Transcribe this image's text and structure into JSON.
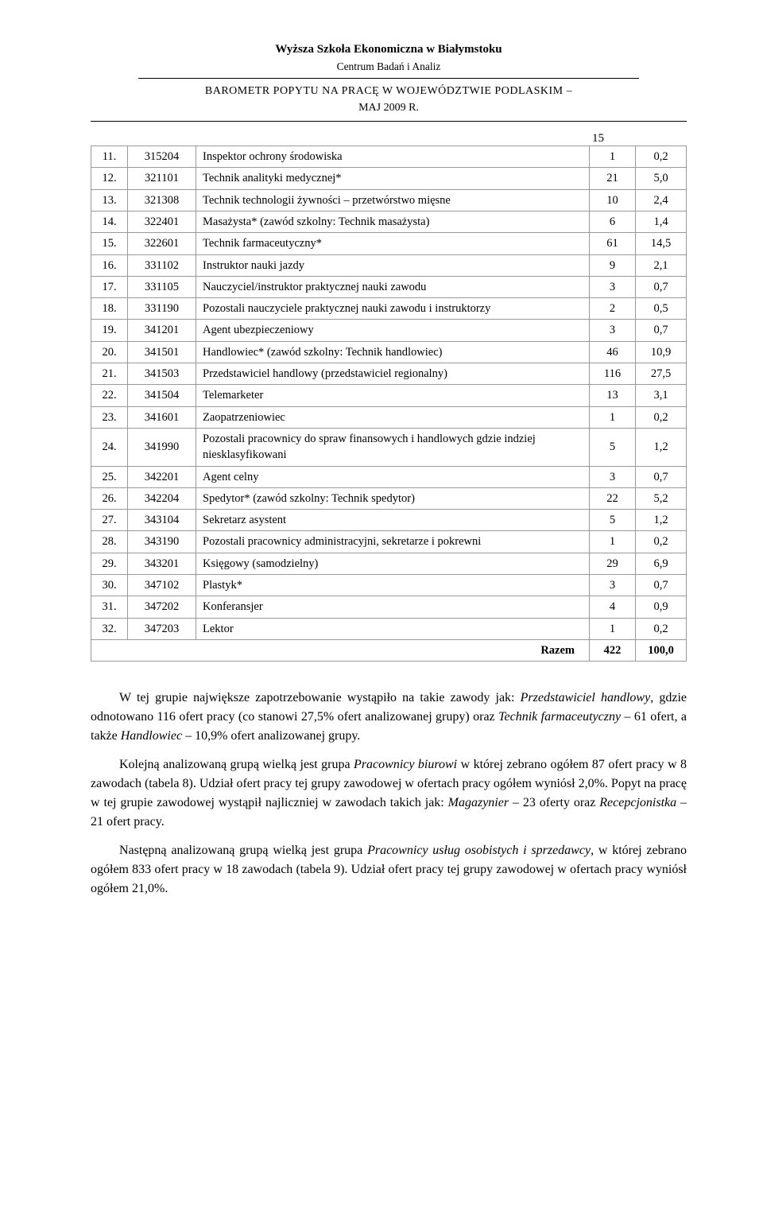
{
  "header": {
    "institution": "Wyższa Szkoła Ekonomiczna w Białymstoku",
    "center": "Centrum Badań i Analiz",
    "barometer": "BAROMETR POPYTU NA PRACĘ W WOJEWÓDZTWIE PODLASKIM –",
    "period": "MAJ 2009 R.",
    "page": "15"
  },
  "table": {
    "rows": [
      {
        "idx": "11.",
        "code": "315204",
        "name": "Inspektor ochrony środowiska",
        "n1": "1",
        "n2": "0,2"
      },
      {
        "idx": "12.",
        "code": "321101",
        "name": "Technik analityki medycznej*",
        "n1": "21",
        "n2": "5,0"
      },
      {
        "idx": "13.",
        "code": "321308",
        "name": "Technik technologii żywności – przetwórstwo mięsne",
        "n1": "10",
        "n2": "2,4"
      },
      {
        "idx": "14.",
        "code": "322401",
        "name": "Masażysta* (zawód szkolny: Technik masażysta)",
        "n1": "6",
        "n2": "1,4"
      },
      {
        "idx": "15.",
        "code": "322601",
        "name": "Technik farmaceutyczny*",
        "n1": "61",
        "n2": "14,5"
      },
      {
        "idx": "16.",
        "code": "331102",
        "name": "Instruktor nauki jazdy",
        "n1": "9",
        "n2": "2,1"
      },
      {
        "idx": "17.",
        "code": "331105",
        "name": "Nauczyciel/instruktor praktycznej nauki zawodu",
        "n1": "3",
        "n2": "0,7"
      },
      {
        "idx": "18.",
        "code": "331190",
        "name": "Pozostali nauczyciele praktycznej nauki zawodu i instruktorzy",
        "n1": "2",
        "n2": "0,5"
      },
      {
        "idx": "19.",
        "code": "341201",
        "name": "Agent ubezpieczeniowy",
        "n1": "3",
        "n2": "0,7"
      },
      {
        "idx": "20.",
        "code": "341501",
        "name": "Handlowiec* (zawód szkolny: Technik handlowiec)",
        "n1": "46",
        "n2": "10,9"
      },
      {
        "idx": "21.",
        "code": "341503",
        "name": "Przedstawiciel handlowy (przedstawiciel regionalny)",
        "n1": "116",
        "n2": "27,5"
      },
      {
        "idx": "22.",
        "code": "341504",
        "name": "Telemarketer",
        "n1": "13",
        "n2": "3,1"
      },
      {
        "idx": "23.",
        "code": "341601",
        "name": "Zaopatrzeniowiec",
        "n1": "1",
        "n2": "0,2"
      },
      {
        "idx": "24.",
        "code": "341990",
        "name": "Pozostali pracownicy do spraw finansowych i handlowych gdzie indziej niesklasyfikowani",
        "n1": "5",
        "n2": "1,2"
      },
      {
        "idx": "25.",
        "code": "342201",
        "name": "Agent celny",
        "n1": "3",
        "n2": "0,7"
      },
      {
        "idx": "26.",
        "code": "342204",
        "name": "Spedytor* (zawód szkolny: Technik spedytor)",
        "n1": "22",
        "n2": "5,2"
      },
      {
        "idx": "27.",
        "code": "343104",
        "name": "Sekretarz asystent",
        "n1": "5",
        "n2": "1,2"
      },
      {
        "idx": "28.",
        "code": "343190",
        "name": "Pozostali pracownicy administracyjni, sekretarze i pokrewni",
        "n1": "1",
        "n2": "0,2"
      },
      {
        "idx": "29.",
        "code": "343201",
        "name": "Księgowy (samodzielny)",
        "n1": "29",
        "n2": "6,9"
      },
      {
        "idx": "30.",
        "code": "347102",
        "name": "Plastyk*",
        "n1": "3",
        "n2": "0,7"
      },
      {
        "idx": "31.",
        "code": "347202",
        "name": "Konferansjer",
        "n1": "4",
        "n2": "0,9"
      },
      {
        "idx": "32.",
        "code": "347203",
        "name": "Lektor",
        "n1": "1",
        "n2": "0,2"
      }
    ],
    "total": {
      "label": "Razem",
      "n1": "422",
      "n2": "100,0"
    }
  },
  "paragraphs": {
    "p1a": "W tej grupie największe zapotrzebowanie wystąpiło na takie zawody jak: ",
    "p1b": "Przedstawiciel handlowy",
    "p1c": ", gdzie odnotowano 116 ofert pracy (co stanowi 27,5% ofert analizowanej grupy) oraz ",
    "p1d": "Technik farmaceutyczny",
    "p1e": " – 61 ofert, a także ",
    "p1f": "Handlowiec",
    "p1g": " – 10,9% ofert analizowanej grupy.",
    "p2a": "Kolejną analizowaną grupą wielką jest grupa ",
    "p2b": "Pracownicy biurowi",
    "p2c": " w której zebrano ogółem 87 ofert pracy w 8 zawodach (tabela 8). Udział ofert pracy tej grupy zawodowej w ofertach pracy ogółem wyniósł 2,0%. Popyt na pracę w tej grupie zawodowej wystąpił najliczniej w zawodach takich jak: ",
    "p2d": "Magazynier",
    "p2e": " – 23 oferty oraz ",
    "p2f": "Recepcjonistka",
    "p2g": " – 21 ofert pracy.",
    "p3a": "Następną analizowaną grupą wielką jest grupa ",
    "p3b": "Pracownicy usług osobistych i sprzedawcy",
    "p3c": ", w której zebrano ogółem 833 ofert pracy w 18 zawodach (tabela 9). Udział ofert pracy tej grupy zawodowej w ofertach pracy wyniósł ogółem 21,0%."
  }
}
